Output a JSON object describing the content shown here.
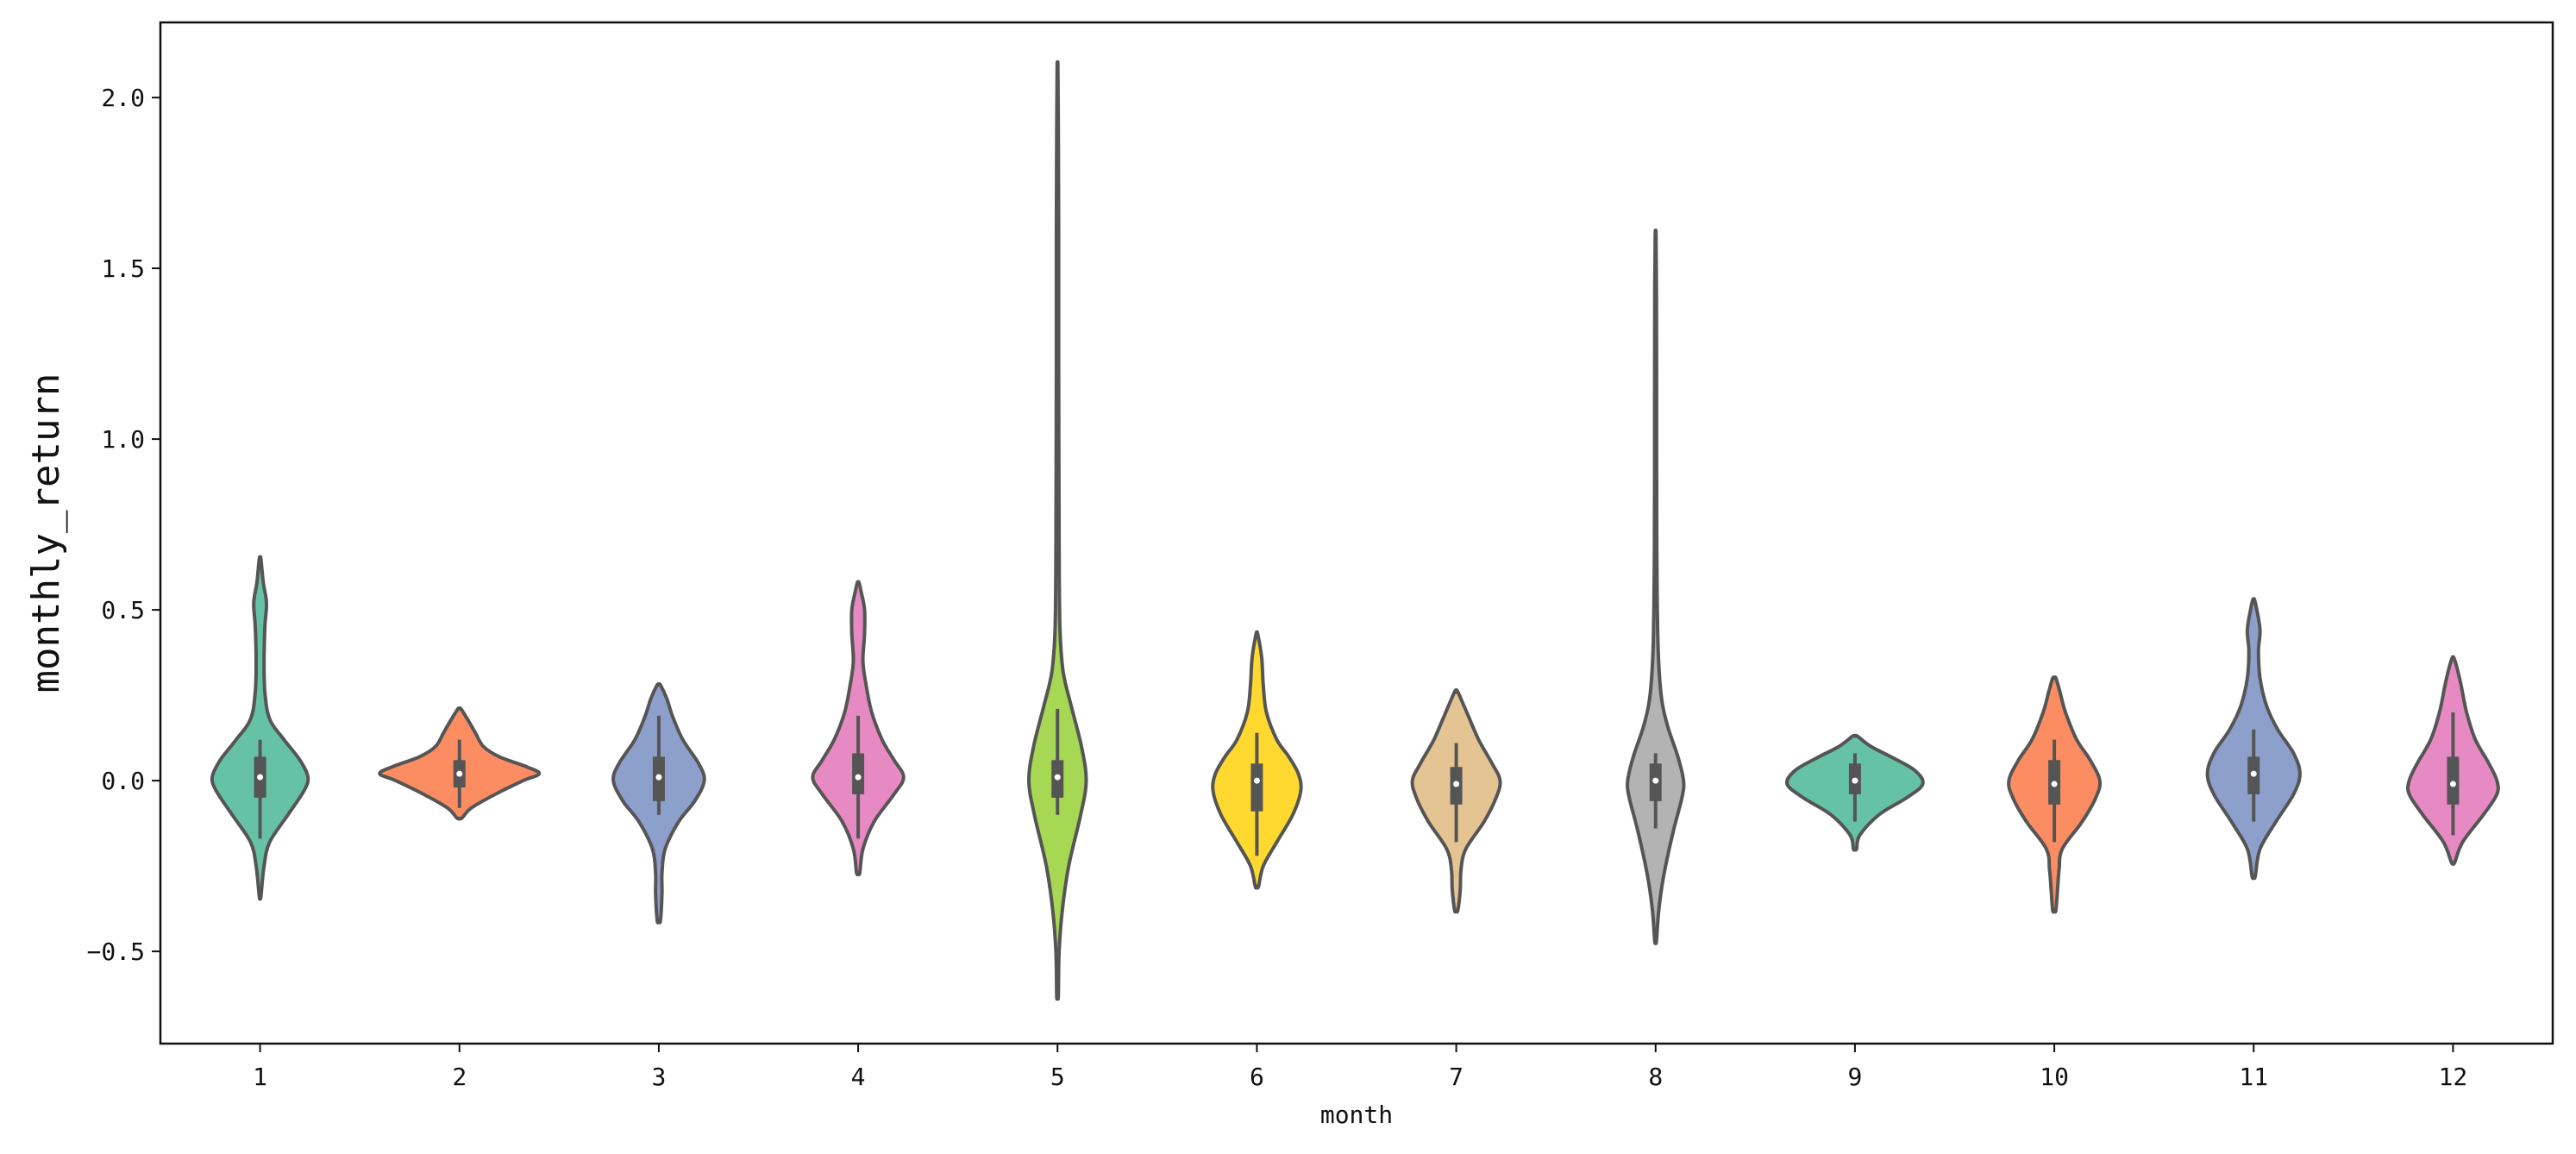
{
  "chart_data": {
    "type": "violin",
    "xlabel": "month",
    "ylabel": "monthly_return",
    "ylim": [
      -0.77,
      2.22
    ],
    "y_ticks": [
      -0.5,
      0.0,
      0.5,
      1.0,
      1.5,
      2.0
    ],
    "y_tick_labels": [
      "−0.5",
      "0.0",
      "0.5",
      "1.0",
      "1.5",
      "2.0"
    ],
    "grid": false,
    "legend": "none",
    "categories": [
      "1",
      "2",
      "3",
      "4",
      "5",
      "6",
      "7",
      "8",
      "9",
      "10",
      "11",
      "12"
    ],
    "violins": [
      {
        "month": "1",
        "color": "#66c2a5",
        "min": -0.34,
        "max": 0.65,
        "q1": -0.05,
        "median": 0.01,
        "q3": 0.07,
        "whisker_low": -0.17,
        "whisker_high": 0.12,
        "profile": [
          [
            -0.34,
            0.01
          ],
          [
            -0.25,
            0.05
          ],
          [
            -0.18,
            0.12
          ],
          [
            -0.1,
            0.35
          ],
          [
            -0.03,
            0.55
          ],
          [
            0.01,
            0.6
          ],
          [
            0.06,
            0.5
          ],
          [
            0.12,
            0.3
          ],
          [
            0.18,
            0.12
          ],
          [
            0.26,
            0.06
          ],
          [
            0.35,
            0.05
          ],
          [
            0.45,
            0.06
          ],
          [
            0.52,
            0.08
          ],
          [
            0.58,
            0.04
          ],
          [
            0.65,
            0.01
          ]
        ]
      },
      {
        "month": "2",
        "color": "#fc8d62",
        "min": -0.11,
        "max": 0.21,
        "q1": -0.02,
        "median": 0.02,
        "q3": 0.06,
        "whisker_low": -0.08,
        "whisker_high": 0.12,
        "profile": [
          [
            -0.11,
            0.03
          ],
          [
            -0.08,
            0.15
          ],
          [
            -0.04,
            0.45
          ],
          [
            0.0,
            0.8
          ],
          [
            0.02,
            1.0
          ],
          [
            0.04,
            0.85
          ],
          [
            0.07,
            0.5
          ],
          [
            0.1,
            0.3
          ],
          [
            0.14,
            0.2
          ],
          [
            0.18,
            0.1
          ],
          [
            0.21,
            0.02
          ]
        ]
      },
      {
        "month": "3",
        "color": "#8da0cb",
        "min": -0.41,
        "max": 0.28,
        "q1": -0.06,
        "median": 0.01,
        "q3": 0.07,
        "whisker_low": -0.1,
        "whisker_high": 0.19,
        "profile": [
          [
            -0.41,
            0.02
          ],
          [
            -0.33,
            0.04
          ],
          [
            -0.27,
            0.04
          ],
          [
            -0.2,
            0.08
          ],
          [
            -0.12,
            0.25
          ],
          [
            -0.06,
            0.45
          ],
          [
            0.0,
            0.57
          ],
          [
            0.05,
            0.5
          ],
          [
            0.12,
            0.3
          ],
          [
            0.19,
            0.17
          ],
          [
            0.24,
            0.1
          ],
          [
            0.28,
            0.02
          ]
        ]
      },
      {
        "month": "4",
        "color": "#e78ac3",
        "min": -0.27,
        "max": 0.58,
        "q1": -0.04,
        "median": 0.01,
        "q3": 0.08,
        "whisker_low": -0.17,
        "whisker_high": 0.19,
        "profile": [
          [
            -0.27,
            0.02
          ],
          [
            -0.2,
            0.06
          ],
          [
            -0.12,
            0.2
          ],
          [
            -0.04,
            0.45
          ],
          [
            0.01,
            0.57
          ],
          [
            0.06,
            0.45
          ],
          [
            0.12,
            0.3
          ],
          [
            0.2,
            0.17
          ],
          [
            0.28,
            0.1
          ],
          [
            0.35,
            0.06
          ],
          [
            0.43,
            0.08
          ],
          [
            0.5,
            0.08
          ],
          [
            0.55,
            0.04
          ],
          [
            0.58,
            0.01
          ]
        ]
      },
      {
        "month": "5",
        "color": "#a6d854",
        "min": -0.63,
        "max": 2.09,
        "q1": -0.05,
        "median": 0.01,
        "q3": 0.06,
        "whisker_low": -0.1,
        "whisker_high": 0.21,
        "profile": [
          [
            -0.63,
            0.01
          ],
          [
            -0.5,
            0.02
          ],
          [
            -0.38,
            0.06
          ],
          [
            -0.25,
            0.14
          ],
          [
            -0.1,
            0.29
          ],
          [
            0.0,
            0.36
          ],
          [
            0.1,
            0.3
          ],
          [
            0.22,
            0.17
          ],
          [
            0.32,
            0.07
          ],
          [
            0.45,
            0.03
          ],
          [
            0.7,
            0.02
          ],
          [
            1.2,
            0.015
          ],
          [
            1.6,
            0.015
          ],
          [
            1.9,
            0.01
          ],
          [
            2.09,
            0.005
          ]
        ]
      },
      {
        "month": "6",
        "color": "#ffd92f",
        "min": -0.31,
        "max": 0.43,
        "q1": -0.09,
        "median": 0.0,
        "q3": 0.05,
        "whisker_low": -0.22,
        "whisker_high": 0.14,
        "profile": [
          [
            -0.31,
            0.02
          ],
          [
            -0.25,
            0.08
          ],
          [
            -0.18,
            0.25
          ],
          [
            -0.1,
            0.45
          ],
          [
            -0.03,
            0.55
          ],
          [
            0.02,
            0.52
          ],
          [
            0.07,
            0.4
          ],
          [
            0.12,
            0.25
          ],
          [
            0.2,
            0.12
          ],
          [
            0.28,
            0.08
          ],
          [
            0.36,
            0.06
          ],
          [
            0.43,
            0.01
          ]
        ]
      },
      {
        "month": "7",
        "color": "#e5c494",
        "min": -0.38,
        "max": 0.26,
        "q1": -0.07,
        "median": -0.01,
        "q3": 0.04,
        "whisker_low": -0.18,
        "whisker_high": 0.11,
        "profile": [
          [
            -0.38,
            0.02
          ],
          [
            -0.32,
            0.05
          ],
          [
            -0.26,
            0.06
          ],
          [
            -0.2,
            0.12
          ],
          [
            -0.12,
            0.35
          ],
          [
            -0.05,
            0.5
          ],
          [
            0.0,
            0.55
          ],
          [
            0.05,
            0.45
          ],
          [
            0.12,
            0.28
          ],
          [
            0.19,
            0.15
          ],
          [
            0.26,
            0.02
          ]
        ]
      },
      {
        "month": "8",
        "color": "#b3b3b3",
        "min": -0.47,
        "max": 1.6,
        "q1": -0.06,
        "median": 0.0,
        "q3": 0.05,
        "whisker_low": -0.14,
        "whisker_high": 0.08,
        "profile": [
          [
            -0.47,
            0.01
          ],
          [
            -0.38,
            0.04
          ],
          [
            -0.28,
            0.1
          ],
          [
            -0.15,
            0.22
          ],
          [
            -0.05,
            0.33
          ],
          [
            0.0,
            0.35
          ],
          [
            0.07,
            0.28
          ],
          [
            0.16,
            0.15
          ],
          [
            0.25,
            0.07
          ],
          [
            0.4,
            0.03
          ],
          [
            0.7,
            0.015
          ],
          [
            1.2,
            0.012
          ],
          [
            1.45,
            0.01
          ],
          [
            1.6,
            0.005
          ]
        ]
      },
      {
        "month": "9",
        "color": "#66c2a5",
        "min": -0.2,
        "max": 0.13,
        "q1": -0.04,
        "median": 0.0,
        "q3": 0.05,
        "whisker_low": -0.12,
        "whisker_high": 0.08,
        "profile": [
          [
            -0.2,
            0.02
          ],
          [
            -0.16,
            0.06
          ],
          [
            -0.1,
            0.3
          ],
          [
            -0.05,
            0.65
          ],
          [
            -0.01,
            0.85
          ],
          [
            0.03,
            0.75
          ],
          [
            0.07,
            0.45
          ],
          [
            0.1,
            0.2
          ],
          [
            0.13,
            0.03
          ]
        ]
      },
      {
        "month": "10",
        "color": "#fc8d62",
        "min": -0.38,
        "max": 0.3,
        "q1": -0.07,
        "median": -0.01,
        "q3": 0.06,
        "whisker_low": -0.18,
        "whisker_high": 0.12,
        "profile": [
          [
            -0.38,
            0.02
          ],
          [
            -0.32,
            0.04
          ],
          [
            -0.26,
            0.06
          ],
          [
            -0.2,
            0.1
          ],
          [
            -0.12,
            0.35
          ],
          [
            -0.05,
            0.52
          ],
          [
            0.0,
            0.57
          ],
          [
            0.06,
            0.45
          ],
          [
            0.12,
            0.28
          ],
          [
            0.2,
            0.14
          ],
          [
            0.26,
            0.07
          ],
          [
            0.3,
            0.02
          ]
        ]
      },
      {
        "month": "11",
        "color": "#8da0cb",
        "min": -0.28,
        "max": 0.53,
        "q1": -0.04,
        "median": 0.02,
        "q3": 0.07,
        "whisker_low": -0.12,
        "whisker_high": 0.15,
        "profile": [
          [
            -0.28,
            0.02
          ],
          [
            -0.2,
            0.08
          ],
          [
            -0.12,
            0.28
          ],
          [
            -0.04,
            0.5
          ],
          [
            0.02,
            0.58
          ],
          [
            0.08,
            0.5
          ],
          [
            0.15,
            0.3
          ],
          [
            0.22,
            0.16
          ],
          [
            0.3,
            0.08
          ],
          [
            0.38,
            0.06
          ],
          [
            0.44,
            0.08
          ],
          [
            0.5,
            0.04
          ],
          [
            0.53,
            0.01
          ]
        ]
      },
      {
        "month": "12",
        "color": "#e78ac3",
        "min": -0.24,
        "max": 0.36,
        "q1": -0.07,
        "median": -0.01,
        "q3": 0.07,
        "whisker_low": -0.16,
        "whisker_high": 0.2,
        "profile": [
          [
            -0.24,
            0.02
          ],
          [
            -0.18,
            0.12
          ],
          [
            -0.1,
            0.38
          ],
          [
            -0.04,
            0.55
          ],
          [
            0.0,
            0.55
          ],
          [
            0.05,
            0.45
          ],
          [
            0.12,
            0.28
          ],
          [
            0.2,
            0.17
          ],
          [
            0.28,
            0.1
          ],
          [
            0.33,
            0.05
          ],
          [
            0.36,
            0.01
          ]
        ]
      }
    ]
  }
}
